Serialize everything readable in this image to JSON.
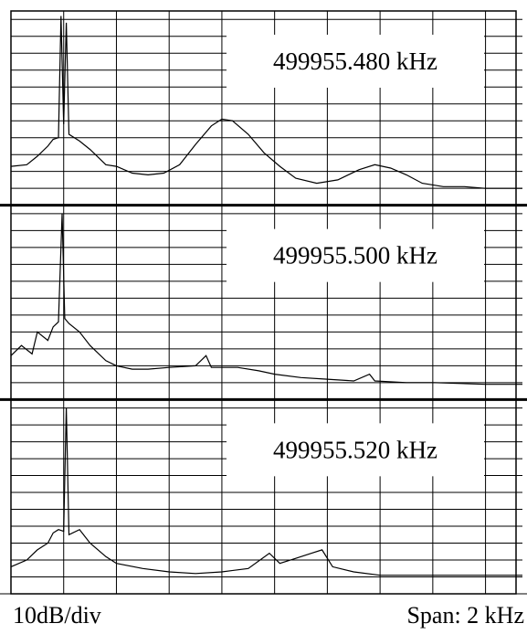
{
  "chart_data": [
    {
      "type": "line",
      "annotation": "499955.480 kHz",
      "color": "#000000",
      "x": [
        0,
        0.3,
        0.5,
        0.7,
        0.8,
        0.9,
        0.95,
        1.0,
        1.05,
        1.1,
        1.3,
        1.5,
        1.8,
        2.0,
        2.3,
        2.6,
        2.9,
        3.2,
        3.5,
        3.8,
        4.0,
        4.2,
        4.5,
        4.8,
        5.1,
        5.4,
        5.8,
        6.2,
        6.6,
        6.9,
        7.2,
        7.5,
        7.8,
        8.2,
        8.6,
        9.0,
        9.7
      ],
      "values": [
        2.3,
        2.4,
        2.9,
        3.5,
        3.9,
        4.0,
        11.2,
        4.8,
        10.8,
        4.2,
        3.8,
        3.3,
        2.4,
        2.3,
        1.9,
        1.8,
        1.9,
        2.4,
        3.6,
        4.7,
        5.1,
        5.0,
        4.2,
        3.1,
        2.3,
        1.6,
        1.3,
        1.5,
        2.1,
        2.4,
        2.2,
        1.8,
        1.3,
        1.1,
        1.1,
        1.0,
        1.0
      ],
      "xlim": [
        0,
        9.7
      ],
      "ylim": [
        0,
        11.5
      ],
      "xticks": [
        0,
        1,
        2,
        3,
        4,
        5,
        6,
        7,
        8,
        9
      ],
      "yticks": [
        0,
        1,
        2,
        3,
        4,
        5,
        6,
        7,
        8,
        9,
        10,
        11
      ],
      "grid": true
    },
    {
      "type": "line",
      "annotation": "499955.500 kHz",
      "color": "#000000",
      "x": [
        0,
        0.2,
        0.4,
        0.5,
        0.7,
        0.8,
        0.9,
        0.97,
        1.02,
        1.1,
        1.3,
        1.5,
        1.8,
        2.0,
        2.3,
        2.6,
        3.0,
        3.5,
        3.7,
        3.8,
        4.3,
        4.7,
        5.0,
        5.5,
        6.0,
        6.5,
        6.8,
        6.9,
        7.5,
        8.0,
        9.0,
        9.7
      ],
      "values": [
        2.6,
        3.2,
        2.7,
        4.0,
        3.5,
        4.3,
        4.6,
        11.0,
        4.8,
        4.5,
        4.0,
        3.2,
        2.3,
        2.0,
        1.8,
        1.8,
        1.9,
        2.0,
        2.6,
        1.9,
        1.9,
        1.7,
        1.5,
        1.3,
        1.2,
        1.1,
        1.5,
        1.1,
        1.0,
        1.0,
        0.9,
        0.9
      ],
      "xlim": [
        0,
        9.7
      ],
      "ylim": [
        0,
        11.5
      ],
      "xticks": [
        0,
        1,
        2,
        3,
        4,
        5,
        6,
        7,
        8,
        9
      ],
      "yticks": [
        0,
        1,
        2,
        3,
        4,
        5,
        6,
        7,
        8,
        9,
        10,
        11
      ],
      "grid": true
    },
    {
      "type": "line",
      "annotation": "499955.520 kHz",
      "color": "#000000",
      "x": [
        0,
        0.3,
        0.5,
        0.7,
        0.8,
        0.9,
        1.0,
        1.05,
        1.1,
        1.3,
        1.5,
        1.8,
        2.0,
        2.5,
        3.0,
        3.5,
        4.0,
        4.5,
        4.9,
        5.1,
        5.4,
        5.7,
        5.9,
        6.1,
        6.5,
        7.0,
        8.0,
        9.0,
        9.7
      ],
      "values": [
        1.6,
        2.0,
        2.6,
        3.0,
        3.6,
        3.8,
        3.7,
        11.0,
        3.5,
        3.8,
        3.0,
        2.2,
        1.8,
        1.5,
        1.3,
        1.2,
        1.3,
        1.5,
        2.4,
        1.8,
        2.1,
        2.4,
        2.6,
        1.6,
        1.3,
        1.1,
        1.1,
        1.1,
        1.1
      ],
      "xlim": [
        0,
        9.7
      ],
      "ylim": [
        0,
        11.5
      ],
      "xticks": [
        0,
        1,
        2,
        3,
        4,
        5,
        6,
        7,
        8,
        9
      ],
      "yticks": [
        0,
        1,
        2,
        3,
        4,
        5,
        6,
        7,
        8,
        9,
        10,
        11
      ],
      "grid": true
    }
  ],
  "footer": {
    "left": "10dB/div",
    "right": "Span: 2 kHz"
  }
}
